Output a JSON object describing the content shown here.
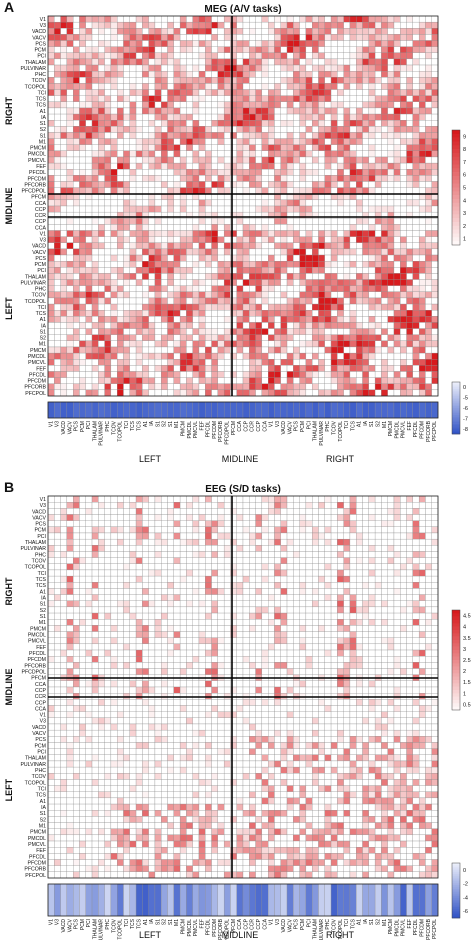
{
  "chart_data": [
    {
      "type": "heatmap",
      "panel_label": "A",
      "title": "MEG (A/V tasks)",
      "row_labels": [
        "V1",
        "V3",
        "VACD",
        "VACV",
        "PCS",
        "PCM",
        "PCI",
        "THALAM",
        "PULVINAR",
        "PHC",
        "TCOV",
        "TCOPOL",
        "TCI",
        "TCS",
        "TCS",
        "A1",
        "IA",
        "S1",
        "S2",
        "S1",
        "M1",
        "PMCM",
        "PMCDL",
        "PMCVL",
        "FEF",
        "PFCDL",
        "PFCDM",
        "PFCORB",
        "PFCDPOL",
        "PFCM",
        "CCA",
        "CCP",
        "CCR",
        "CCP",
        "CCA",
        "V1",
        "V3",
        "VACD",
        "VACV",
        "PCS",
        "PCM",
        "PCI",
        "THALAM",
        "PULVINAR",
        "PHC",
        "TCOV",
        "TCOPOL",
        "TCI",
        "TCS",
        "A1",
        "IA",
        "S1",
        "S2",
        "M1",
        "PMCM",
        "PMCDL",
        "PMCVL",
        "FEF",
        "PFCDL",
        "PFCDM",
        "PFCORB",
        "PFCPOL"
      ],
      "groups": [
        "RIGHT",
        "MIDLINE",
        "LEFT"
      ],
      "bottom_groups": [
        "LEFT",
        "MIDLINE",
        "RIGHT"
      ],
      "colorbar_pos": {
        "min": 0,
        "max": 9,
        "ticks": [
          "9",
          "8",
          "7",
          "6",
          "5",
          "4",
          "3",
          "2",
          "1"
        ]
      },
      "colorbar_neg": {
        "min": -8,
        "max": 0,
        "ticks": [
          "0",
          "-5",
          "-6",
          "-7",
          "-8"
        ]
      }
    },
    {
      "type": "heatmap",
      "panel_label": "B",
      "title": "EEG (S/D tasks)",
      "row_labels": [
        "V1",
        "V3",
        "VACD",
        "VACV",
        "PCS",
        "PCM",
        "PCI",
        "THALAM",
        "PULVINAR",
        "PHC",
        "TCOV",
        "TCOPOL",
        "TCI",
        "TCS",
        "TCS",
        "A1",
        "IA",
        "S1",
        "S2",
        "S1",
        "M1",
        "PMCM",
        "PMCDL",
        "PMCVL",
        "FEF",
        "PFCDL",
        "PFCDM",
        "PFCORB",
        "PFCDPOL",
        "PFCM",
        "CCA",
        "CCP",
        "CCR",
        "CCP",
        "CCA",
        "V1",
        "V3",
        "VACD",
        "VACV",
        "PCS",
        "PCM",
        "PCI",
        "THALAM",
        "PULVINAR",
        "PHC",
        "TCOV",
        "TCOPOL",
        "TCI",
        "TCS",
        "A1",
        "IA",
        "S1",
        "S2",
        "M1",
        "PMCM",
        "PMCDL",
        "PMCVL",
        "FEF",
        "PFCDL",
        "PFCDM",
        "PFCORB",
        "PFCPOL"
      ],
      "groups": [
        "RIGHT",
        "MIDLINE",
        "LEFT"
      ],
      "bottom_groups": [
        "LEFT",
        "MIDLINE",
        "RIGHT"
      ],
      "colorbar_pos": {
        "min": 0,
        "max": 4.5,
        "ticks": [
          "4.5",
          "4",
          "3.5",
          "3",
          "2.5",
          "2",
          "1.5",
          "1",
          "0.5"
        ]
      },
      "colorbar_neg": {
        "min": -6,
        "max": 0,
        "ticks": [
          "0",
          "-2",
          "-4",
          "-6"
        ]
      }
    }
  ],
  "colors": {
    "low": "#ffffff",
    "high": "#d7191c",
    "neg": "#2b4ec4",
    "grid": "#999999"
  }
}
